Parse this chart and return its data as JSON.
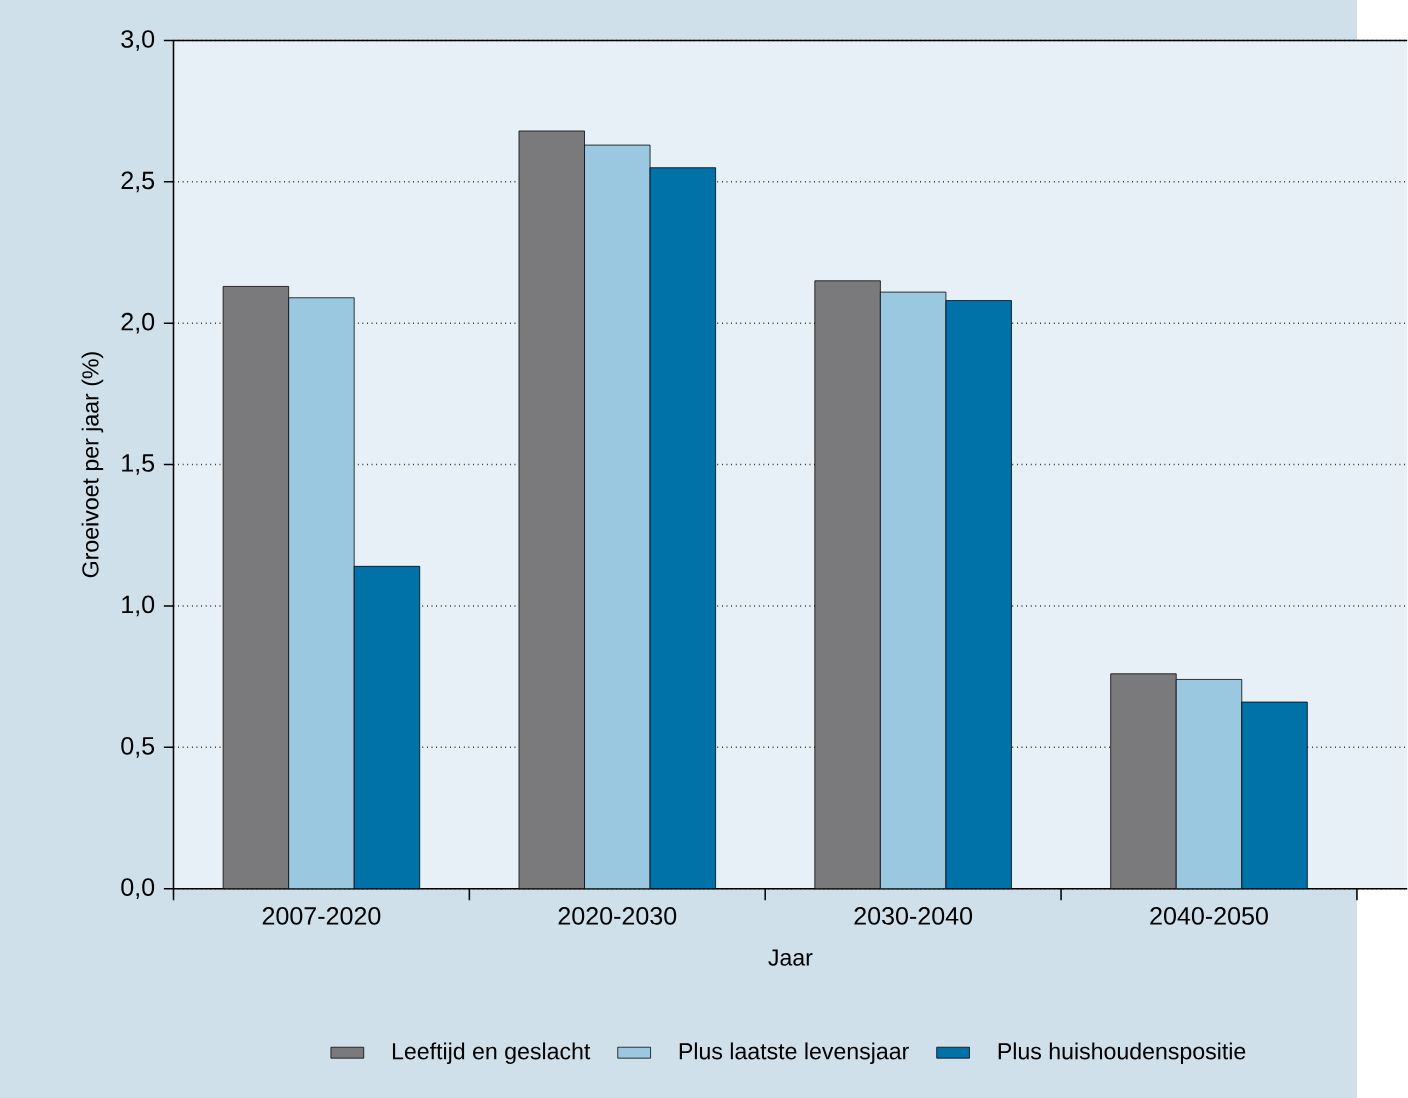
{
  "chart_data": {
    "type": "bar",
    "xlabel": "Jaar",
    "ylabel": "Groeivoet per jaar (%)",
    "categories": [
      "2007-2020",
      "2020-2030",
      "2030-2040",
      "2040-2050"
    ],
    "series": [
      {
        "name": "Leeftijd en geslacht",
        "color": "#7a7a7c",
        "values": [
          2.13,
          2.68,
          2.15,
          0.76
        ]
      },
      {
        "name": "Plus laatste levensjaar",
        "color": "#9ac8e0",
        "values": [
          2.09,
          2.63,
          2.11,
          0.74
        ]
      },
      {
        "name": "Plus huishoudenspositie",
        "color": "#0072a8",
        "values": [
          1.14,
          2.55,
          2.08,
          0.66
        ]
      }
    ],
    "ylim": [
      0,
      3
    ],
    "yticks": [
      {
        "value": 0,
        "label": "0,0"
      },
      {
        "value": 0.5,
        "label": "0,5"
      },
      {
        "value": 1,
        "label": "1,0"
      },
      {
        "value": 1.5,
        "label": "1,5"
      },
      {
        "value": 2,
        "label": "2,0"
      },
      {
        "value": 2.5,
        "label": "2,5"
      },
      {
        "value": 3,
        "label": "3,0"
      }
    ],
    "grid": "y",
    "legend": "bottom"
  }
}
